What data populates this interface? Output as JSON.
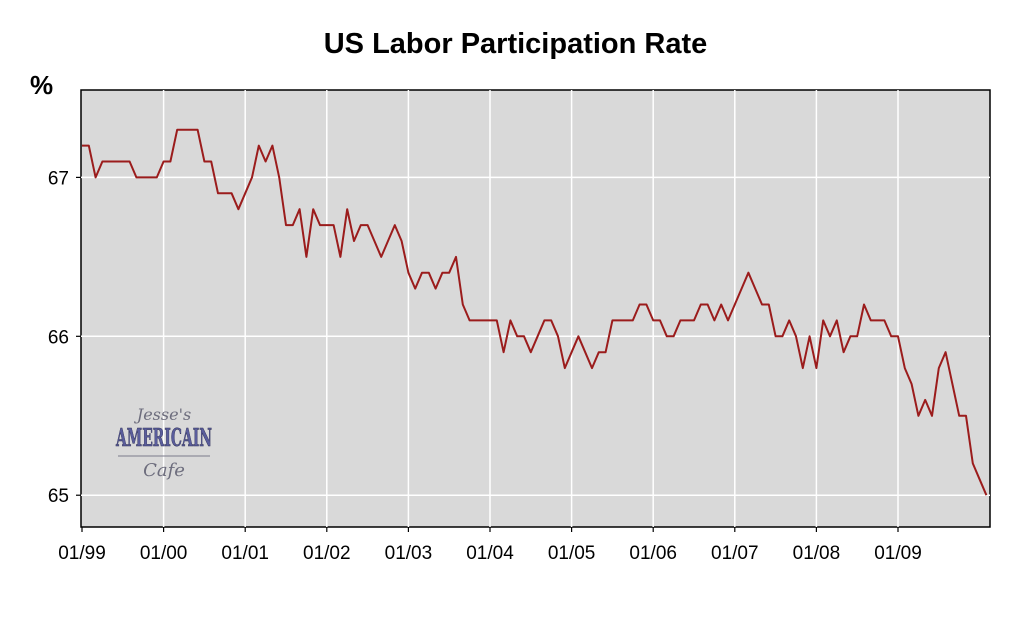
{
  "chart_data": {
    "type": "line",
    "title": "US Labor Participation Rate",
    "ylabel": "%",
    "xlabel": "",
    "ylim": [
      64.8,
      67.55
    ],
    "yticks": [
      65,
      66,
      67
    ],
    "ytick_labels": [
      "65",
      "66",
      "67"
    ],
    "xtick_labels": [
      "01/99",
      "01/00",
      "01/01",
      "01/02",
      "01/03",
      "01/04",
      "01/05",
      "01/06",
      "01/07",
      "01/08",
      "01/09"
    ],
    "x_start": "1999-01",
    "x_end": "2009-10",
    "grid": true,
    "series": [
      {
        "color": "#9b1c1c",
        "values": [
          67.2,
          67.2,
          67.0,
          67.1,
          67.1,
          67.1,
          67.1,
          67.1,
          67.0,
          67.0,
          67.0,
          67.0,
          67.1,
          67.1,
          67.3,
          67.3,
          67.3,
          67.3,
          67.1,
          67.1,
          66.9,
          66.9,
          66.9,
          66.8,
          66.9,
          67.0,
          67.2,
          67.1,
          67.2,
          67.0,
          66.7,
          66.7,
          66.8,
          66.5,
          66.8,
          66.7,
          66.7,
          66.7,
          66.5,
          66.8,
          66.6,
          66.7,
          66.7,
          66.6,
          66.5,
          66.6,
          66.7,
          66.6,
          66.4,
          66.3,
          66.4,
          66.4,
          66.3,
          66.4,
          66.4,
          66.5,
          66.2,
          66.1,
          66.1,
          66.1,
          66.1,
          66.1,
          65.9,
          66.1,
          66.0,
          66.0,
          65.9,
          66.0,
          66.1,
          66.1,
          66.0,
          65.8,
          65.9,
          66.0,
          65.9,
          65.8,
          65.9,
          65.9,
          66.1,
          66.1,
          66.1,
          66.1,
          66.2,
          66.2,
          66.1,
          66.1,
          66.0,
          66.0,
          66.1,
          66.1,
          66.1,
          66.2,
          66.2,
          66.1,
          66.2,
          66.1,
          66.2,
          66.3,
          66.4,
          66.3,
          66.2,
          66.2,
          66.0,
          66.0,
          66.1,
          66.0,
          65.8,
          66.0,
          65.8,
          66.1,
          66.0,
          66.1,
          65.9,
          66.0,
          66.0,
          66.2,
          66.1,
          66.1,
          66.1,
          66.0,
          66.0,
          65.8,
          65.7,
          65.5,
          65.6,
          65.5,
          65.8,
          65.9,
          65.7,
          65.5,
          65.5,
          65.2,
          65.1,
          65.0
        ]
      }
    ]
  },
  "watermark": {
    "line1": "Jesse's",
    "line2": "AMERICAIN",
    "line3": "Cafe"
  }
}
